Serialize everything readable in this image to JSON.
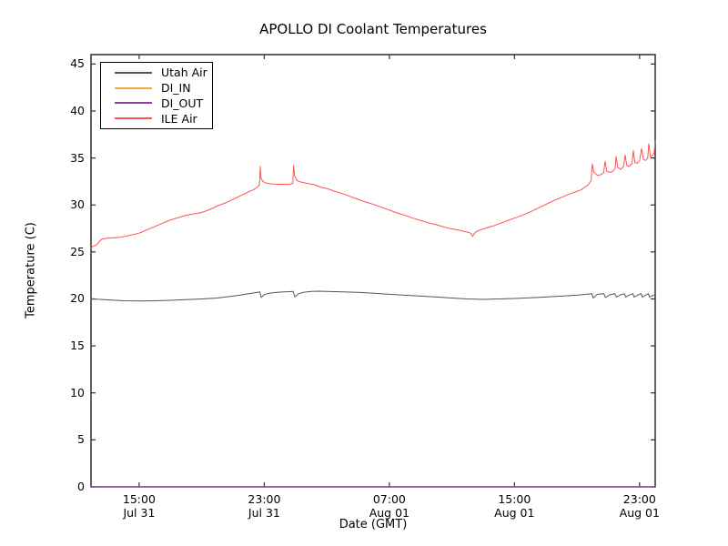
{
  "chart_data": {
    "type": "line",
    "title": "APOLLO DI Coolant Temperatures",
    "xlabel": "Date (GMT)",
    "ylabel": "Temperature (C)",
    "ylim": [
      0,
      46
    ],
    "yticks": [
      0,
      5,
      10,
      15,
      20,
      25,
      30,
      35,
      40,
      45
    ],
    "x_unit": "hours since Jul 31 00:00 GMT",
    "xlim": [
      11.92,
      48.0
    ],
    "xticks": [
      {
        "hours": 15,
        "time": "15:00",
        "date": "Jul 31"
      },
      {
        "hours": 23,
        "time": "23:00",
        "date": "Jul 31"
      },
      {
        "hours": 31,
        "time": "07:00",
        "date": "Aug 01"
      },
      {
        "hours": 39,
        "time": "15:00",
        "date": "Aug 01"
      },
      {
        "hours": 47,
        "time": "23:00",
        "date": "Aug 01"
      }
    ],
    "grid": false,
    "legend_position": "upper-left",
    "axes_color": "#2e2e2e",
    "series": [
      {
        "name": "Utah Air",
        "color": "#555555",
        "points": [
          [
            11.92,
            20.0
          ],
          [
            12.5,
            19.95
          ],
          [
            13.0,
            19.9
          ],
          [
            13.5,
            19.85
          ],
          [
            14.0,
            19.8
          ],
          [
            15.0,
            19.78
          ],
          [
            16.0,
            19.8
          ],
          [
            17.0,
            19.85
          ],
          [
            18.0,
            19.92
          ],
          [
            19.0,
            20.0
          ],
          [
            20.0,
            20.1
          ],
          [
            20.5,
            20.2
          ],
          [
            21.0,
            20.3
          ],
          [
            21.5,
            20.42
          ],
          [
            22.0,
            20.55
          ],
          [
            22.4,
            20.65
          ],
          [
            22.72,
            20.75
          ],
          [
            22.8,
            20.15
          ],
          [
            23.0,
            20.45
          ],
          [
            23.3,
            20.6
          ],
          [
            23.8,
            20.7
          ],
          [
            24.3,
            20.75
          ],
          [
            24.85,
            20.8
          ],
          [
            24.95,
            20.2
          ],
          [
            25.2,
            20.55
          ],
          [
            25.5,
            20.7
          ],
          [
            26.0,
            20.8
          ],
          [
            26.5,
            20.82
          ],
          [
            27.0,
            20.8
          ],
          [
            28.0,
            20.75
          ],
          [
            29.0,
            20.7
          ],
          [
            30.0,
            20.6
          ],
          [
            31.0,
            20.5
          ],
          [
            32.0,
            20.4
          ],
          [
            33.0,
            20.3
          ],
          [
            34.0,
            20.2
          ],
          [
            35.0,
            20.1
          ],
          [
            36.0,
            20.0
          ],
          [
            37.0,
            19.95
          ],
          [
            38.0,
            20.0
          ],
          [
            39.0,
            20.05
          ],
          [
            40.0,
            20.12
          ],
          [
            41.0,
            20.2
          ],
          [
            42.0,
            20.3
          ],
          [
            43.0,
            20.4
          ],
          [
            43.6,
            20.5
          ],
          [
            43.95,
            20.55
          ],
          [
            44.03,
            20.1
          ],
          [
            44.3,
            20.5
          ],
          [
            44.72,
            20.55
          ],
          [
            44.82,
            20.15
          ],
          [
            45.1,
            20.45
          ],
          [
            45.42,
            20.55
          ],
          [
            45.52,
            20.2
          ],
          [
            45.8,
            20.45
          ],
          [
            46.03,
            20.55
          ],
          [
            46.12,
            20.2
          ],
          [
            46.4,
            20.45
          ],
          [
            46.57,
            20.55
          ],
          [
            46.65,
            20.2
          ],
          [
            46.95,
            20.45
          ],
          [
            47.1,
            20.55
          ],
          [
            47.18,
            20.2
          ],
          [
            47.45,
            20.45
          ],
          [
            47.56,
            20.55
          ],
          [
            47.64,
            20.2
          ],
          [
            47.9,
            20.4
          ],
          [
            48.0,
            20.45
          ]
        ]
      },
      {
        "name": "DI_IN",
        "color": "#f9a743",
        "points": [
          [
            11.92,
            0
          ],
          [
            48.0,
            0
          ]
        ]
      },
      {
        "name": "DI_OUT",
        "color": "#8d419f",
        "points": [
          [
            11.92,
            0
          ],
          [
            48.0,
            0
          ]
        ]
      },
      {
        "name": "ILE Air",
        "color": "#ff5252",
        "points": [
          [
            11.92,
            25.4
          ],
          [
            12.0,
            25.55
          ],
          [
            12.15,
            25.65
          ],
          [
            12.3,
            25.8
          ],
          [
            12.45,
            26.1
          ],
          [
            12.6,
            26.35
          ],
          [
            12.9,
            26.45
          ],
          [
            13.3,
            26.5
          ],
          [
            13.7,
            26.55
          ],
          [
            14.1,
            26.65
          ],
          [
            14.5,
            26.8
          ],
          [
            15.0,
            27.0
          ],
          [
            15.5,
            27.35
          ],
          [
            16.0,
            27.7
          ],
          [
            16.5,
            28.05
          ],
          [
            17.0,
            28.4
          ],
          [
            17.5,
            28.65
          ],
          [
            18.0,
            28.9
          ],
          [
            18.5,
            29.05
          ],
          [
            19.0,
            29.2
          ],
          [
            19.5,
            29.5
          ],
          [
            20.0,
            29.9
          ],
          [
            20.5,
            30.2
          ],
          [
            21.0,
            30.6
          ],
          [
            21.5,
            31.0
          ],
          [
            22.0,
            31.4
          ],
          [
            22.3,
            31.6
          ],
          [
            22.55,
            31.9
          ],
          [
            22.68,
            32.1
          ],
          [
            22.72,
            32.8
          ],
          [
            22.74,
            34.1
          ],
          [
            22.79,
            32.9
          ],
          [
            22.9,
            32.5
          ],
          [
            23.1,
            32.35
          ],
          [
            23.4,
            32.25
          ],
          [
            23.8,
            32.2
          ],
          [
            24.2,
            32.2
          ],
          [
            24.6,
            32.2
          ],
          [
            24.82,
            32.3
          ],
          [
            24.88,
            34.2
          ],
          [
            24.94,
            33.1
          ],
          [
            25.1,
            32.6
          ],
          [
            25.3,
            32.45
          ],
          [
            25.6,
            32.35
          ],
          [
            25.9,
            32.25
          ],
          [
            26.2,
            32.15
          ],
          [
            26.6,
            31.9
          ],
          [
            27.0,
            31.75
          ],
          [
            27.5,
            31.45
          ],
          [
            28.0,
            31.2
          ],
          [
            28.5,
            30.9
          ],
          [
            29.0,
            30.6
          ],
          [
            29.5,
            30.3
          ],
          [
            30.0,
            30.05
          ],
          [
            30.5,
            29.75
          ],
          [
            31.0,
            29.45
          ],
          [
            31.5,
            29.15
          ],
          [
            32.0,
            28.9
          ],
          [
            32.5,
            28.6
          ],
          [
            33.0,
            28.35
          ],
          [
            33.5,
            28.1
          ],
          [
            34.0,
            27.9
          ],
          [
            34.5,
            27.65
          ],
          [
            35.0,
            27.45
          ],
          [
            35.5,
            27.3
          ],
          [
            36.0,
            27.1
          ],
          [
            36.2,
            27.0
          ],
          [
            36.32,
            26.65
          ],
          [
            36.45,
            27.0
          ],
          [
            36.6,
            27.2
          ],
          [
            36.9,
            27.4
          ],
          [
            37.3,
            27.6
          ],
          [
            37.7,
            27.8
          ],
          [
            38.1,
            28.05
          ],
          [
            38.5,
            28.3
          ],
          [
            39.0,
            28.6
          ],
          [
            39.5,
            28.9
          ],
          [
            40.0,
            29.25
          ],
          [
            40.5,
            29.65
          ],
          [
            41.0,
            30.05
          ],
          [
            41.5,
            30.45
          ],
          [
            42.0,
            30.8
          ],
          [
            42.5,
            31.15
          ],
          [
            43.0,
            31.45
          ],
          [
            43.3,
            31.65
          ],
          [
            43.5,
            31.9
          ],
          [
            43.7,
            32.1
          ],
          [
            43.9,
            32.6
          ],
          [
            43.98,
            34.35
          ],
          [
            44.08,
            33.5
          ],
          [
            44.3,
            33.15
          ],
          [
            44.5,
            33.2
          ],
          [
            44.7,
            33.45
          ],
          [
            44.8,
            34.65
          ],
          [
            44.9,
            33.6
          ],
          [
            45.1,
            33.45
          ],
          [
            45.3,
            33.6
          ],
          [
            45.44,
            33.9
          ],
          [
            45.5,
            35.15
          ],
          [
            45.6,
            34.0
          ],
          [
            45.8,
            33.8
          ],
          [
            45.98,
            34.1
          ],
          [
            46.08,
            35.3
          ],
          [
            46.18,
            34.2
          ],
          [
            46.35,
            34.1
          ],
          [
            46.52,
            34.4
          ],
          [
            46.6,
            35.8
          ],
          [
            46.7,
            34.5
          ],
          [
            46.85,
            34.45
          ],
          [
            47.0,
            34.7
          ],
          [
            47.13,
            36.0
          ],
          [
            47.25,
            34.8
          ],
          [
            47.4,
            34.75
          ],
          [
            47.52,
            35.0
          ],
          [
            47.59,
            36.5
          ],
          [
            47.7,
            35.1
          ],
          [
            47.85,
            35.3
          ],
          [
            47.93,
            35.5
          ],
          [
            48.0,
            36.8
          ]
        ]
      }
    ]
  }
}
